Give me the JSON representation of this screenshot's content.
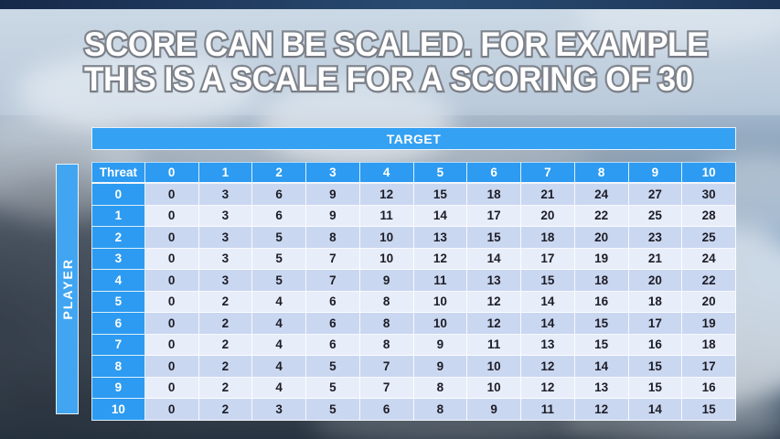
{
  "slide": {
    "title_line1": "SCORE CAN BE SCALED. FOR EXAMPLE",
    "title_line2": "THIS IS A SCALE FOR A SCORING OF 30"
  },
  "axes": {
    "target_label": "TARGET",
    "player_label": "PLAYER"
  },
  "table": {
    "corner_header": "Threat",
    "target_headers": [
      "0",
      "1",
      "2",
      "3",
      "4",
      "5",
      "6",
      "7",
      "8",
      "9",
      "10"
    ],
    "rows": [
      {
        "threat": "0",
        "values": [
          0,
          3,
          6,
          9,
          12,
          15,
          18,
          21,
          24,
          27,
          30
        ]
      },
      {
        "threat": "1",
        "values": [
          0,
          3,
          6,
          9,
          11,
          14,
          17,
          20,
          22,
          25,
          28
        ]
      },
      {
        "threat": "2",
        "values": [
          0,
          3,
          5,
          8,
          10,
          13,
          15,
          18,
          20,
          23,
          25
        ]
      },
      {
        "threat": "3",
        "values": [
          0,
          3,
          5,
          7,
          10,
          12,
          14,
          17,
          19,
          21,
          24
        ]
      },
      {
        "threat": "4",
        "values": [
          0,
          3,
          5,
          7,
          9,
          11,
          13,
          15,
          18,
          20,
          22
        ]
      },
      {
        "threat": "5",
        "values": [
          0,
          2,
          4,
          6,
          8,
          10,
          12,
          14,
          16,
          18,
          20
        ]
      },
      {
        "threat": "6",
        "values": [
          0,
          2,
          4,
          6,
          8,
          10,
          12,
          14,
          15,
          17,
          19
        ]
      },
      {
        "threat": "7",
        "values": [
          0,
          2,
          4,
          6,
          8,
          9,
          11,
          13,
          15,
          16,
          18
        ]
      },
      {
        "threat": "8",
        "values": [
          0,
          2,
          4,
          5,
          7,
          9,
          10,
          12,
          14,
          15,
          17
        ]
      },
      {
        "threat": "9",
        "values": [
          0,
          2,
          4,
          5,
          7,
          8,
          10,
          12,
          13,
          15,
          16
        ]
      },
      {
        "threat": "10",
        "values": [
          0,
          2,
          3,
          5,
          6,
          8,
          9,
          11,
          12,
          14,
          15
        ]
      }
    ]
  },
  "colors": {
    "header_blue": "#2d9bf1",
    "target_bar_blue": "#35a1f2",
    "player_bar_blue": "#41a5f2",
    "row_stripe_dark": "#cad7f1",
    "row_stripe_light": "#e7edf9",
    "cell_text": "#1d1d26",
    "title_fill": "#ffffff",
    "title_outline": "#82878f",
    "horizon_navy": "#1d3557"
  }
}
